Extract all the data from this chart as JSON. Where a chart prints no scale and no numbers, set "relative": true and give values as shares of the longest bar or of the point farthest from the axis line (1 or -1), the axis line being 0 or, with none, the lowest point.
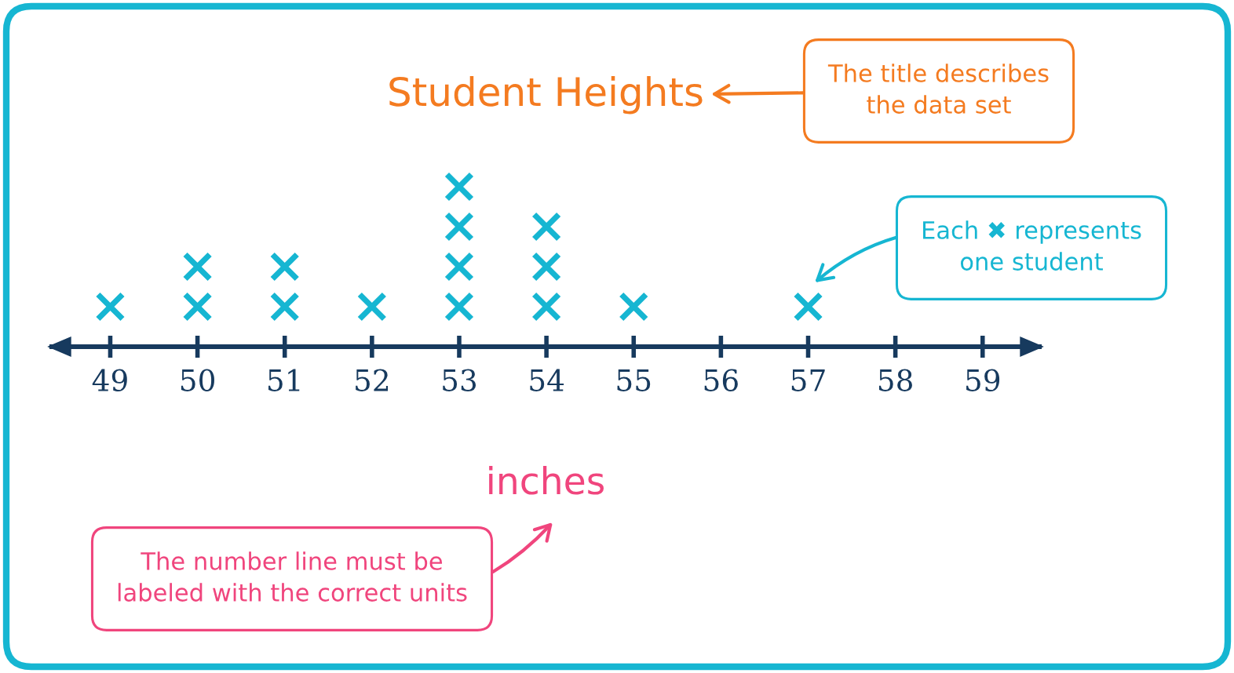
{
  "chart_data": {
    "type": "scatter",
    "title": "Student Heights",
    "xlabel": "inches",
    "annotations": [
      "The title describes\nthe data set",
      "Each ✖ represents\none student",
      "The number line must be\nlabeled with the correct units"
    ],
    "relative": true,
    "marker": "cross",
    "xlim": [
      48.33,
      59.65
    ],
    "xticks": [
      49,
      50,
      51,
      52,
      53,
      54,
      55,
      56,
      57,
      58,
      59
    ],
    "series": [
      {
        "color": "#16b6d2",
        "x": [
          49,
          50,
          50,
          51,
          51,
          52,
          53,
          53,
          53,
          53,
          54,
          54,
          54,
          55,
          57
        ],
        "values": [
          0.25,
          0.25,
          0.5,
          0.25,
          0.5,
          0.25,
          0.25,
          0.5,
          0.75,
          1,
          0.25,
          0.5,
          0.75,
          0.25,
          0.25
        ]
      }
    ]
  }
}
